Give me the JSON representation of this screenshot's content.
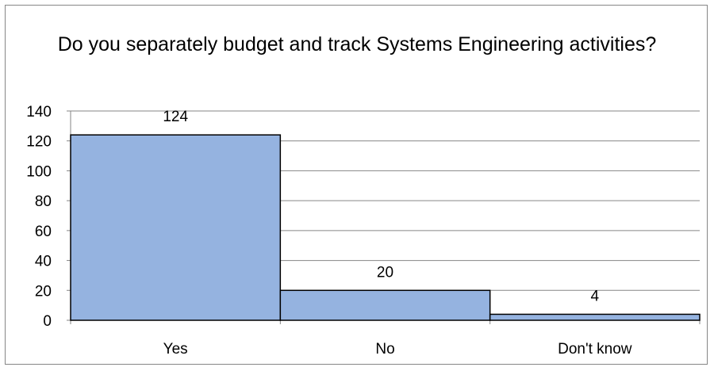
{
  "chart_data": {
    "type": "bar",
    "title": "Do you separately budget and track Systems Engineering activities?",
    "categories": [
      "Yes",
      "No",
      "Don't know"
    ],
    "values": [
      124,
      20,
      4
    ],
    "data_labels": [
      "124",
      "20",
      "4"
    ],
    "y_ticks": [
      "0",
      "20",
      "40",
      "60",
      "80",
      "100",
      "120",
      "140"
    ],
    "ylim": [
      0,
      140
    ],
    "y_step": 20,
    "grid": true,
    "legend": "none",
    "bar_color": "#95b3e0",
    "bar_edge_color": "#000000"
  }
}
